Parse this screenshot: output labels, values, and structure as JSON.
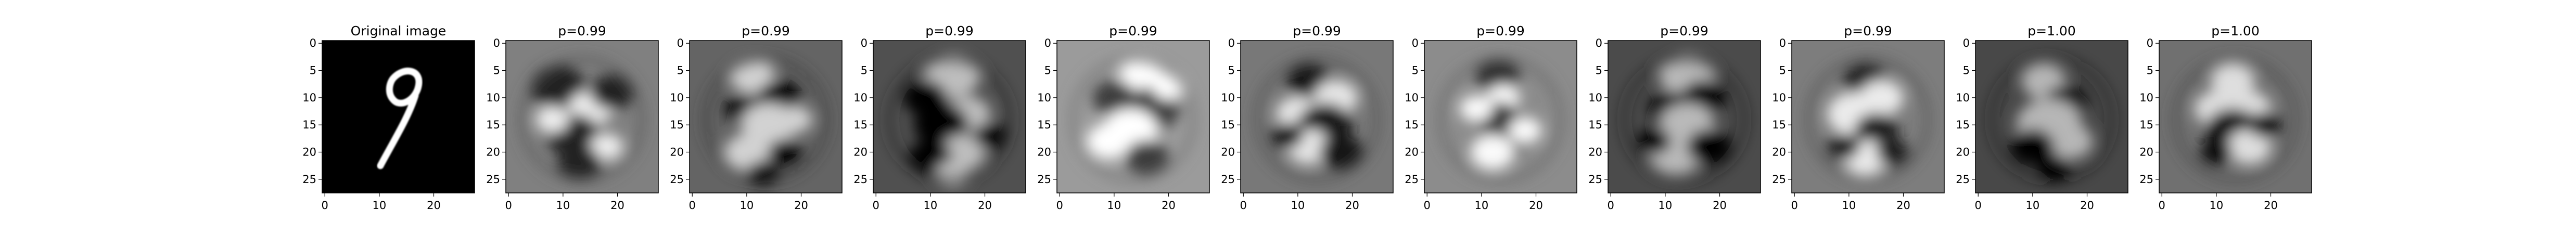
{
  "figure": {
    "panels": [
      {
        "title": "Original image",
        "kind": "digit",
        "xticks": [
          "0",
          "10",
          "20"
        ],
        "yticks": [
          "0",
          "5",
          "10",
          "15",
          "20",
          "25"
        ]
      },
      {
        "title": "p=0.99",
        "kind": "filter",
        "background_gray": 128,
        "xticks": [
          "0",
          "10",
          "20"
        ],
        "yticks": [
          "0",
          "5",
          "10",
          "15",
          "20",
          "25"
        ]
      },
      {
        "title": "p=0.99",
        "kind": "filter",
        "background_gray": 100,
        "xticks": [
          "0",
          "10",
          "20"
        ],
        "yticks": [
          "0",
          "5",
          "10",
          "15",
          "20",
          "25"
        ]
      },
      {
        "title": "p=0.99",
        "kind": "filter",
        "background_gray": 80,
        "xticks": [
          "0",
          "10",
          "20"
        ],
        "yticks": [
          "0",
          "5",
          "10",
          "15",
          "20",
          "25"
        ]
      },
      {
        "title": "p=0.99",
        "kind": "filter",
        "background_gray": 155,
        "xticks": [
          "0",
          "10",
          "20"
        ],
        "yticks": [
          "0",
          "5",
          "10",
          "15",
          "20",
          "25"
        ]
      },
      {
        "title": "p=0.99",
        "kind": "filter",
        "background_gray": 120,
        "xticks": [
          "0",
          "10",
          "20"
        ],
        "yticks": [
          "0",
          "5",
          "10",
          "15",
          "20",
          "25"
        ]
      },
      {
        "title": "p=0.99",
        "kind": "filter",
        "background_gray": 140,
        "xticks": [
          "0",
          "10",
          "20"
        ],
        "yticks": [
          "0",
          "5",
          "10",
          "15",
          "20",
          "25"
        ]
      },
      {
        "title": "p=0.99",
        "kind": "filter",
        "background_gray": 75,
        "xticks": [
          "0",
          "10",
          "20"
        ],
        "yticks": [
          "0",
          "5",
          "10",
          "15",
          "20",
          "25"
        ]
      },
      {
        "title": "p=0.99",
        "kind": "filter",
        "background_gray": 125,
        "xticks": [
          "0",
          "10",
          "20"
        ],
        "yticks": [
          "0",
          "5",
          "10",
          "15",
          "20",
          "25"
        ]
      },
      {
        "title": "p=1.00",
        "kind": "filter",
        "background_gray": 72,
        "xticks": [
          "0",
          "10",
          "20"
        ],
        "yticks": [
          "0",
          "5",
          "10",
          "15",
          "20",
          "25"
        ]
      },
      {
        "title": "p=1.00",
        "kind": "filter",
        "background_gray": 112,
        "xticks": [
          "0",
          "10",
          "20"
        ],
        "yticks": [
          "0",
          "5",
          "10",
          "15",
          "20",
          "25"
        ]
      }
    ]
  }
}
